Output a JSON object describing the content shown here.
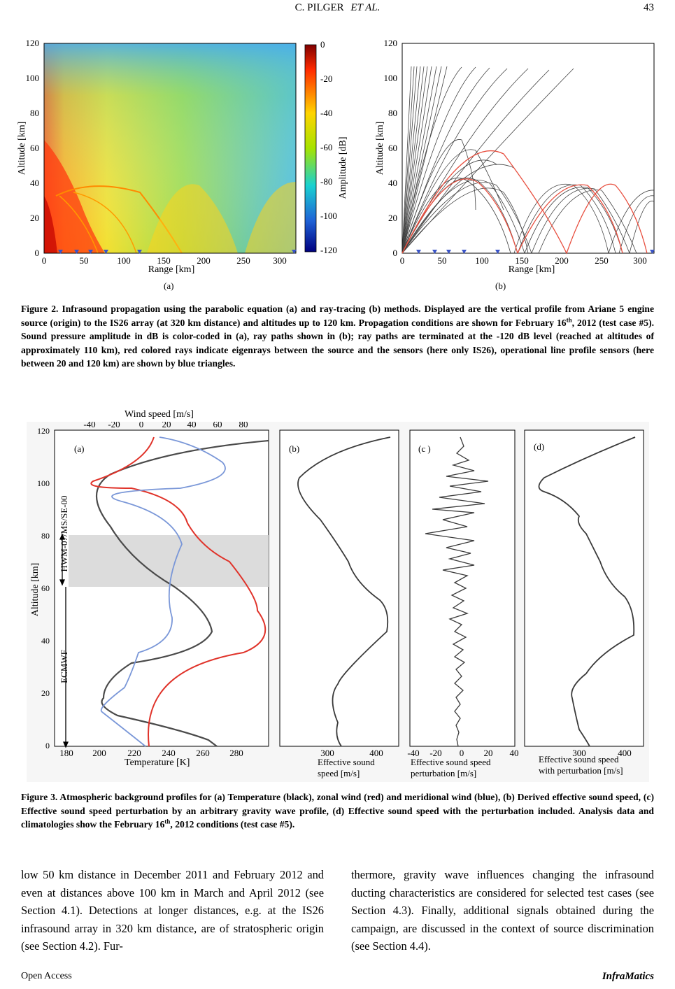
{
  "header": {
    "authors": "C. PILGER",
    "et_al": "ET AL.",
    "page_number": "43"
  },
  "figure2": {
    "panel_a": {
      "label": "(a)",
      "xlabel": "Range [km]",
      "ylabel": "Altitude [km]",
      "x_ticks": [
        "0",
        "50",
        "100",
        "150",
        "200",
        "250",
        "300"
      ],
      "y_ticks": [
        "0",
        "20",
        "40",
        "60",
        "80",
        "100",
        "120"
      ],
      "colorbar_label": "Amplitude [dB]",
      "colorbar_ticks": [
        "0",
        "-20",
        "-40",
        "-60",
        "-80",
        "-100",
        "-120"
      ],
      "colorbar_colors": [
        "#7f0000",
        "#ff2a00",
        "#ffd400",
        "#a6e300",
        "#19d1d1",
        "#1f62d6",
        "#00007f"
      ]
    },
    "panel_b": {
      "label": "(b)",
      "xlabel": "Range [km]",
      "ylabel": "Altitude [km]",
      "x_ticks": [
        "0",
        "50",
        "100",
        "150",
        "200",
        "250",
        "300"
      ],
      "y_ticks": [
        "0",
        "20",
        "40",
        "60",
        "80",
        "100",
        "120"
      ]
    },
    "caption_lead": "Figure 2. Infrasound propagation using the parabolic equation (a) and ray-tracing (b) methods. Displayed are the vertical profile from Ariane 5 engine source (origin) to the IS26 array (at 320 km distance) and altitudes up to 120 km. Propagation conditions are shown for February 16",
    "caption_sup": "th",
    "caption_tail": ", 2012 (test case #5). Sound pressure amplitude in dB is color-coded in (a), ray paths shown in (b); ray paths are terminated at the -120 dB level (reached at altitudes of approximately 110 km), red colored rays indicate eigenrays between the source and the sensors (here only IS26), operational line profile sensors (here between 20 and 120 km) are shown by blue triangles."
  },
  "figure3": {
    "wind_label": "Wind speed [m/s]",
    "wind_ticks": [
      "-40",
      "-20",
      "0",
      "20",
      "40",
      "60",
      "80"
    ],
    "alt_label": "Altitude [km]",
    "alt_ticks": [
      "120",
      "100",
      "80",
      "60",
      "40",
      "20",
      "0"
    ],
    "temp_label": "Temperature [K]",
    "temp_ticks": [
      "180",
      "200",
      "220",
      "240",
      "260",
      "280"
    ],
    "model_upper": "HWM-07/MS/SE-00",
    "model_lower": "ECMWF",
    "panel_a": "(a)",
    "panel_b": "(b)",
    "panel_c": "(c )",
    "panel_d": "(d)",
    "b_ticks": [
      "300",
      "400"
    ],
    "b_label1": "Effective sound",
    "b_label2": "speed [m/s]",
    "c_ticks": [
      "-40",
      "-20",
      "0",
      "20",
      "40"
    ],
    "c_label1": "Effective sound  speed",
    "c_label2": "perturbation [m/s]",
    "d_ticks": [
      "300",
      "400"
    ],
    "d_label1": "Effective sound speed",
    "d_label2": "with perturbation [m/s]",
    "caption_lead": "Figure 3. Atmospheric background profiles for (a) Temperature (black), zonal wind (red) and meridional wind (blue), (b) Derived effective sound speed, (c) Effective sound speed perturbation by an arbitrary gravity wave profile, (d) Effective sound speed with the perturbation included. Analysis data and climatologies show the February 16",
    "caption_sup": "th",
    "caption_tail": ", 2012 conditions (test case #5)."
  },
  "body": {
    "left": "low 50 km distance in December 2011 and February 2012 and even at distances above 100 km in March and April 2012 (see Section 4.1). Detections at longer distances, e.g. at the IS26 infrasound array in 320 km distance, are of stratospheric origin (see Section 4.2). Fur-",
    "right": "thermore, gravity wave influences changing the infrasound ducting characteristics are considered for selected test cases (see Section 4.3). Finally, additional signals obtained during the campaign, are discussed in the context of source discrimination (see Section 4.4)."
  },
  "footer": {
    "left": "Open  Access",
    "right": "InfraMatics"
  }
}
